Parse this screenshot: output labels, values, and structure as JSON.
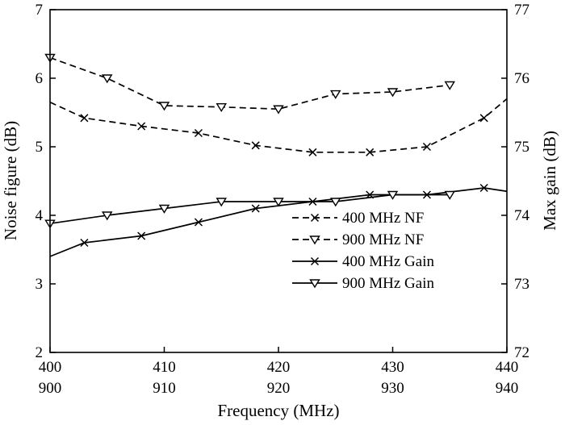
{
  "chart_data": {
    "type": "line",
    "xlabel": "Frequency (MHz)",
    "ylabel_left": "Noise figure (dB)",
    "ylabel_right": "Max gain (dB)",
    "x_top": {
      "ticks": [
        400,
        410,
        420,
        430,
        440
      ],
      "range": [
        400,
        440
      ]
    },
    "x_bottom": {
      "ticks": [
        900,
        910,
        920,
        930,
        940
      ],
      "range": [
        900,
        940
      ]
    },
    "y_left": {
      "ticks": [
        2,
        3,
        4,
        5,
        6,
        7
      ],
      "range": [
        2,
        7
      ]
    },
    "y_right": {
      "ticks": [
        72,
        73,
        74,
        75,
        76,
        77
      ],
      "range": [
        72,
        77
      ]
    },
    "grid": false,
    "legend_position": "bottom-right",
    "series": [
      {
        "name": "400 MHz NF",
        "axis": "left",
        "xscale": "top",
        "dash": true,
        "marker": "x",
        "x": [
          400,
          403,
          408,
          413,
          418,
          423,
          428,
          433,
          438,
          440
        ],
        "y": [
          5.65,
          5.42,
          5.3,
          5.2,
          5.02,
          4.92,
          4.92,
          5.0,
          5.42,
          5.7
        ],
        "markers": [
          false,
          true,
          true,
          true,
          true,
          true,
          true,
          true,
          true,
          false
        ]
      },
      {
        "name": "900 MHz NF",
        "axis": "left",
        "xscale": "bottom",
        "dash": true,
        "marker": "triangle",
        "x": [
          900,
          905,
          910,
          915,
          920,
          925,
          930,
          935
        ],
        "y": [
          6.3,
          6.0,
          5.6,
          5.58,
          5.55,
          5.77,
          5.8,
          5.9
        ],
        "markers": [
          true,
          true,
          true,
          true,
          true,
          true,
          true,
          true
        ]
      },
      {
        "name": "400 MHz Gain",
        "axis": "right",
        "xscale": "top",
        "dash": false,
        "marker": "x",
        "x": [
          400,
          403,
          408,
          413,
          418,
          423,
          428,
          433,
          438,
          440
        ],
        "y": [
          73.4,
          73.6,
          73.7,
          73.9,
          74.1,
          74.2,
          74.3,
          74.3,
          74.4,
          74.35
        ],
        "markers": [
          false,
          true,
          true,
          true,
          true,
          true,
          true,
          true,
          true,
          false
        ]
      },
      {
        "name": "900 MHz Gain",
        "axis": "right",
        "xscale": "bottom",
        "dash": false,
        "marker": "triangle",
        "x": [
          900,
          905,
          910,
          915,
          920,
          925,
          930,
          935
        ],
        "y": [
          73.88,
          74.0,
          74.1,
          74.2,
          74.2,
          74.2,
          74.3,
          74.3
        ],
        "markers": [
          true,
          true,
          true,
          true,
          true,
          true,
          true,
          true
        ]
      }
    ]
  }
}
